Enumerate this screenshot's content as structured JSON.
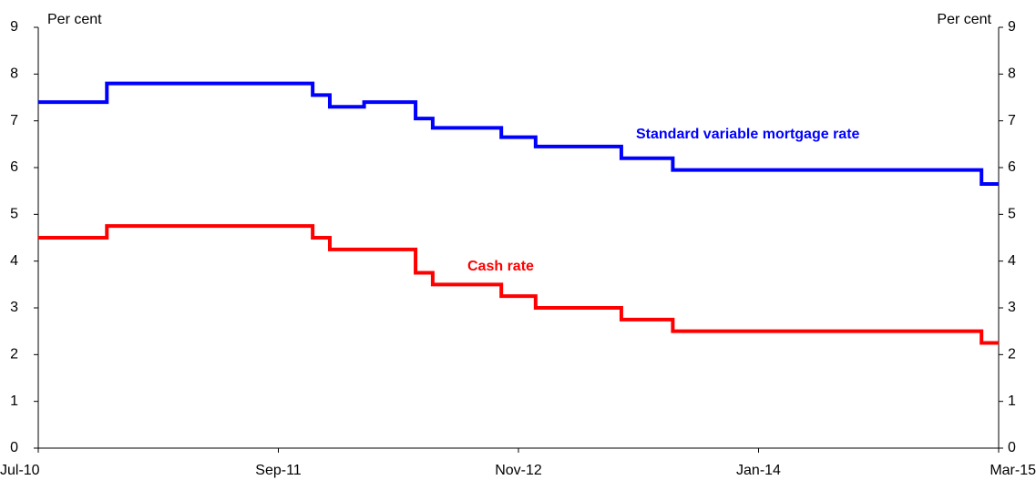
{
  "chart_data": {
    "type": "line",
    "step": true,
    "y_label": "Per cent",
    "y2_label": "Per cent",
    "xlim": [
      "Jul-10",
      "Mar-15"
    ],
    "xticks": [
      "Jul-10",
      "Sep-11",
      "Nov-12",
      "Jan-14",
      "Mar-15"
    ],
    "ylim": [
      0,
      9
    ],
    "yticks": [
      0,
      1,
      2,
      3,
      4,
      5,
      6,
      7,
      8,
      9
    ],
    "y2lim": [
      0,
      9
    ],
    "y2ticks": [
      0,
      1,
      2,
      3,
      4,
      5,
      6,
      7,
      8,
      9
    ],
    "series": [
      {
        "name": "Standard variable mortgage rate",
        "color": "#0000ff",
        "x": [
          "Jul-10",
          "Nov-10",
          "Nov-10",
          "Nov-11",
          "Nov-11",
          "Dec-11",
          "Dec-11",
          "Feb-12",
          "Feb-12",
          "May-12",
          "May-12",
          "Jun-12",
          "Jun-12",
          "Oct-12",
          "Oct-12",
          "Dec-12",
          "Dec-12",
          "May-13",
          "May-13",
          "Aug-13",
          "Aug-13",
          "Feb-15",
          "Feb-15",
          "Mar-15"
        ],
        "values": [
          7.4,
          7.4,
          7.8,
          7.8,
          7.55,
          7.55,
          7.3,
          7.3,
          7.4,
          7.4,
          7.05,
          7.05,
          6.85,
          6.85,
          6.65,
          6.65,
          6.45,
          6.45,
          6.2,
          6.2,
          5.95,
          5.95,
          5.65,
          5.65
        ]
      },
      {
        "name": "Cash rate",
        "color": "#ff0000",
        "x": [
          "Jul-10",
          "Nov-10",
          "Nov-10",
          "Nov-11",
          "Nov-11",
          "Dec-11",
          "Dec-11",
          "May-12",
          "May-12",
          "Jun-12",
          "Jun-12",
          "Oct-12",
          "Oct-12",
          "Dec-12",
          "Dec-12",
          "May-13",
          "May-13",
          "Aug-13",
          "Aug-13",
          "Feb-15",
          "Feb-15",
          "Mar-15"
        ],
        "values": [
          4.5,
          4.5,
          4.75,
          4.75,
          4.5,
          4.5,
          4.25,
          4.25,
          3.75,
          3.75,
          3.5,
          3.5,
          3.25,
          3.25,
          3.0,
          3.0,
          2.75,
          2.75,
          2.5,
          2.5,
          2.25,
          2.25
        ]
      }
    ]
  }
}
